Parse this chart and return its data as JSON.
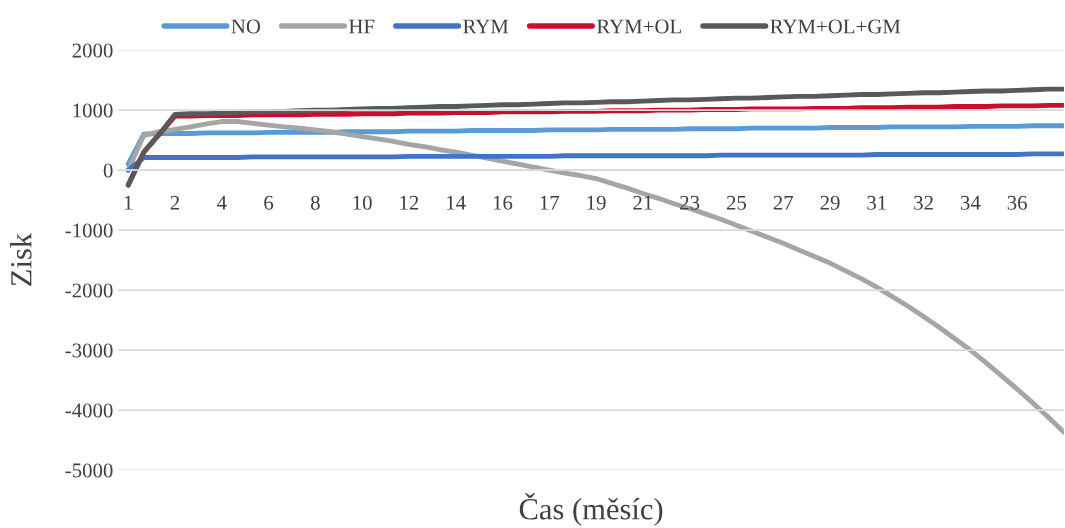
{
  "chart_data": {
    "type": "line",
    "xlabel": "Čas (měsíc)",
    "ylabel": "Zisk",
    "categories": [
      "1",
      null,
      null,
      "2",
      null,
      null,
      "4",
      null,
      null,
      "6",
      null,
      null,
      "8",
      null,
      null,
      "10",
      null,
      null,
      "12",
      null,
      null,
      "14",
      null,
      null,
      "16",
      null,
      null,
      "17",
      null,
      null,
      "19",
      null,
      null,
      "21",
      null,
      null,
      "23",
      null,
      null,
      "25",
      null,
      null,
      "27",
      null,
      null,
      "29",
      null,
      null,
      "31",
      null,
      null,
      "32",
      null,
      null,
      "34",
      null,
      null,
      "36",
      null,
      null,
      null
    ],
    "series": [
      {
        "name": "NO",
        "color": "#5b9bd5",
        "values": [
          100,
          600,
          610,
          610,
          610,
          620,
          620,
          620,
          620,
          630,
          630,
          630,
          630,
          630,
          640,
          640,
          640,
          640,
          650,
          650,
          650,
          650,
          660,
          660,
          660,
          660,
          660,
          670,
          670,
          670,
          670,
          680,
          680,
          680,
          680,
          680,
          690,
          690,
          690,
          690,
          700,
          700,
          700,
          700,
          700,
          710,
          710,
          710,
          710,
          720,
          720,
          720,
          720,
          720,
          730,
          730,
          730,
          730,
          740,
          740,
          740
        ]
      },
      {
        "name": "HF",
        "color": "#a5a5a5",
        "values": [
          0,
          580,
          640,
          680,
          720,
          770,
          810,
          810,
          780,
          750,
          720,
          700,
          670,
          640,
          600,
          560,
          520,
          480,
          430,
          390,
          340,
          300,
          250,
          200,
          150,
          100,
          50,
          0,
          -50,
          -90,
          -140,
          -220,
          -300,
          -390,
          -470,
          -560,
          -640,
          -730,
          -820,
          -920,
          -1020,
          -1120,
          -1220,
          -1330,
          -1440,
          -1550,
          -1680,
          -1810,
          -1950,
          -2110,
          -2270,
          -2440,
          -2620,
          -2810,
          -3000,
          -3210,
          -3430,
          -3650,
          -3880,
          -4120,
          -4370
        ]
      },
      {
        "name": "RYM",
        "color": "#4472c4",
        "values": [
          0,
          210,
          210,
          210,
          210,
          210,
          210,
          210,
          220,
          220,
          220,
          220,
          220,
          220,
          220,
          220,
          220,
          220,
          230,
          230,
          230,
          230,
          230,
          230,
          230,
          230,
          230,
          230,
          240,
          240,
          240,
          240,
          240,
          240,
          240,
          240,
          240,
          240,
          250,
          250,
          250,
          250,
          250,
          250,
          250,
          250,
          250,
          250,
          260,
          260,
          260,
          260,
          260,
          260,
          260,
          260,
          260,
          260,
          270,
          270,
          270
        ]
      },
      {
        "name": "RYM+OL",
        "color": "#c8102e",
        "values": [
          -250,
          300,
          600,
          900,
          900,
          910,
          910,
          910,
          920,
          920,
          920,
          920,
          930,
          930,
          930,
          940,
          940,
          940,
          950,
          950,
          950,
          960,
          960,
          960,
          970,
          970,
          970,
          970,
          980,
          980,
          980,
          990,
          990,
          990,
          1000,
          1000,
          1000,
          1010,
          1010,
          1010,
          1020,
          1020,
          1020,
          1020,
          1030,
          1030,
          1030,
          1040,
          1040,
          1040,
          1050,
          1050,
          1050,
          1060,
          1060,
          1060,
          1070,
          1070,
          1070,
          1080,
          1080
        ]
      },
      {
        "name": "RYM+OL+GM",
        "color": "#595959",
        "values": [
          -250,
          300,
          600,
          930,
          940,
          940,
          950,
          960,
          970,
          970,
          980,
          990,
          1000,
          1000,
          1010,
          1020,
          1030,
          1030,
          1040,
          1050,
          1060,
          1060,
          1070,
          1080,
          1090,
          1090,
          1100,
          1110,
          1120,
          1120,
          1130,
          1140,
          1140,
          1150,
          1160,
          1170,
          1170,
          1180,
          1190,
          1200,
          1200,
          1210,
          1220,
          1230,
          1230,
          1240,
          1250,
          1260,
          1260,
          1270,
          1280,
          1290,
          1290,
          1300,
          1310,
          1320,
          1320,
          1330,
          1340,
          1350,
          1350
        ]
      }
    ],
    "ylim": [
      -5000,
      2000
    ],
    "yticks": [
      -5000,
      -4000,
      -3000,
      -2000,
      -1000,
      0,
      1000,
      2000
    ],
    "grid": "y",
    "legend": "top"
  }
}
